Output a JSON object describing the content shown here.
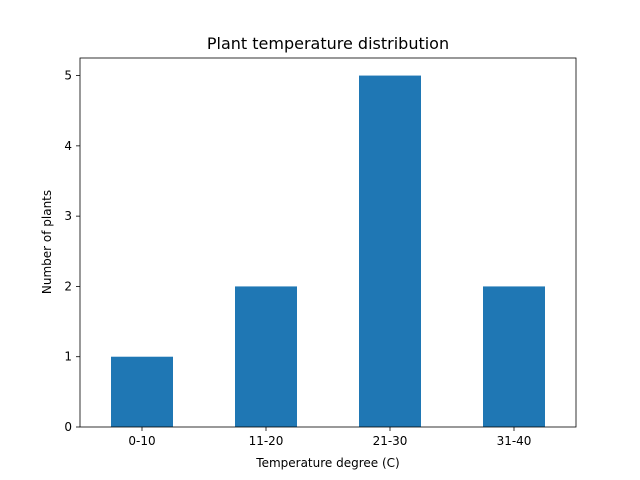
{
  "chart_data": {
    "type": "bar",
    "title": "Plant temperature distribution",
    "xlabel": "Temperature degree (C)",
    "ylabel": "Number of plants",
    "categories": [
      "0-10",
      "11-20",
      "21-30",
      "31-40"
    ],
    "values": [
      1,
      2,
      5,
      2
    ],
    "ylim": [
      0,
      5.25
    ],
    "yticks": [
      "0",
      "1",
      "2",
      "3",
      "4",
      "5"
    ],
    "grid": false,
    "bar_color": "#1f77b4"
  }
}
